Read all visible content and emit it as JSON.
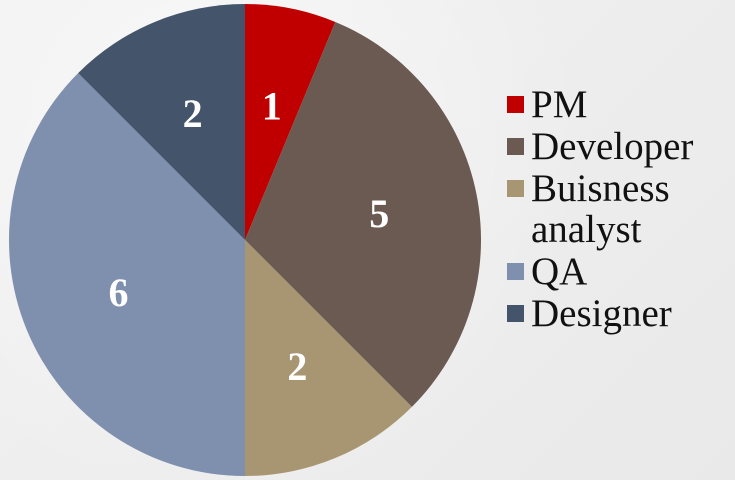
{
  "chart_data": {
    "type": "pie",
    "categories": [
      "PM",
      "Developer",
      "Buisness analyst",
      "QA",
      "Designer"
    ],
    "values": [
      1,
      5,
      2,
      6,
      2
    ],
    "colors": [
      "#c00000",
      "#6b5a52",
      "#a89572",
      "#7f8fae",
      "#44546a"
    ],
    "data_labels": [
      "1",
      "5",
      "2",
      "6",
      "2"
    ],
    "legend_position": "right",
    "start_angle_deg": 0,
    "direction": "clockwise"
  },
  "legend": {
    "items": [
      {
        "label": "PM",
        "color": "#c00000"
      },
      {
        "label": "Developer",
        "color": "#6b5a52"
      },
      {
        "label": "Buisness analyst",
        "color": "#a89572"
      },
      {
        "label": "QA",
        "color": "#7f8fae"
      },
      {
        "label": "Designer",
        "color": "#44546a"
      }
    ]
  }
}
